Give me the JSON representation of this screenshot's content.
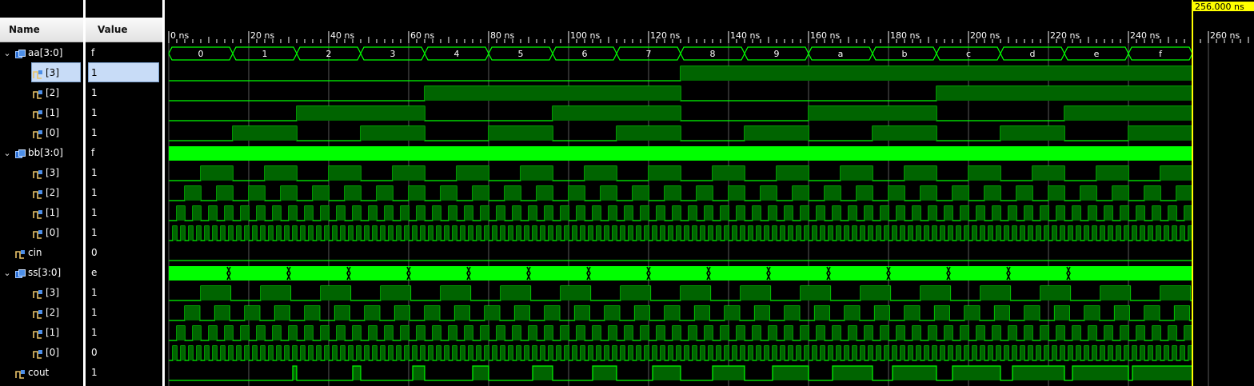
{
  "columns": {
    "name": "Name",
    "value": "Value"
  },
  "cursor": {
    "time_label": "256.000 ns",
    "time_ns": 256
  },
  "time_axis": {
    "range_ns": [
      0,
      268
    ],
    "major_ticks": [
      {
        "t": 0,
        "label": "0 ns"
      },
      {
        "t": 20,
        "label": "20 ns"
      },
      {
        "t": 40,
        "label": "40 ns"
      },
      {
        "t": 60,
        "label": "60 ns"
      },
      {
        "t": 80,
        "label": "80 ns"
      },
      {
        "t": 100,
        "label": "100 ns"
      },
      {
        "t": 120,
        "label": "120 ns"
      },
      {
        "t": 140,
        "label": "140 ns"
      },
      {
        "t": 160,
        "label": "160 ns"
      },
      {
        "t": 180,
        "label": "180 ns"
      },
      {
        "t": 200,
        "label": "200 ns"
      },
      {
        "t": 220,
        "label": "220 ns"
      },
      {
        "t": 240,
        "label": "240 ns"
      },
      {
        "t": 260,
        "label": "260 ns"
      }
    ]
  },
  "colors": {
    "wave": "#00ff00",
    "wave_dim": "#006400",
    "grid": "#5a5a5a",
    "cursor": "#ffff00",
    "selection": "#c8dcf7"
  },
  "signals": [
    {
      "name": "aa[3:0]",
      "value": "f",
      "kind": "bus",
      "expanded": true,
      "level": 0,
      "bus_labels": [
        "0",
        "1",
        "2",
        "3",
        "4",
        "5",
        "6",
        "7",
        "8",
        "9",
        "a",
        "b",
        "c",
        "d",
        "e",
        "f"
      ],
      "bus_period_ns": 16
    },
    {
      "name": "[3]",
      "value": "1",
      "kind": "bit",
      "level": 1,
      "selected": true,
      "period_ns": 256,
      "phase_ns": 128
    },
    {
      "name": "[2]",
      "value": "1",
      "kind": "bit",
      "level": 1,
      "period_ns": 128,
      "phase_ns": 64
    },
    {
      "name": "[1]",
      "value": "1",
      "kind": "bit",
      "level": 1,
      "period_ns": 64,
      "phase_ns": 32
    },
    {
      "name": "[0]",
      "value": "1",
      "kind": "bit",
      "level": 1,
      "period_ns": 32,
      "phase_ns": 16
    },
    {
      "name": "bb[3:0]",
      "value": "f",
      "kind": "busdense",
      "expanded": true,
      "level": 0
    },
    {
      "name": "[3]",
      "value": "1",
      "kind": "bit",
      "level": 1,
      "period_ns": 16,
      "phase_ns": 8
    },
    {
      "name": "[2]",
      "value": "1",
      "kind": "bit",
      "level": 1,
      "period_ns": 8,
      "phase_ns": 4
    },
    {
      "name": "[1]",
      "value": "1",
      "kind": "bit",
      "level": 1,
      "period_ns": 4,
      "phase_ns": 2
    },
    {
      "name": "[0]",
      "value": "1",
      "kind": "bit",
      "level": 1,
      "period_ns": 2,
      "phase_ns": 1
    },
    {
      "name": "cin",
      "value": "0",
      "kind": "bit0",
      "level": 0
    },
    {
      "name": "ss[3:0]",
      "value": "e",
      "kind": "busdense2",
      "expanded": true,
      "level": 0
    },
    {
      "name": "[3]",
      "value": "1",
      "kind": "bit",
      "level": 1,
      "period_ns": 15,
      "phase_ns": 8
    },
    {
      "name": "[2]",
      "value": "1",
      "kind": "bit",
      "level": 1,
      "period_ns": 7.5,
      "phase_ns": 4
    },
    {
      "name": "[1]",
      "value": "1",
      "kind": "bit",
      "level": 1,
      "period_ns": 4,
      "phase_ns": 2
    },
    {
      "name": "[0]",
      "value": "0",
      "kind": "bit",
      "level": 1,
      "period_ns": 2,
      "phase_ns": 1
    },
    {
      "name": "cout",
      "value": "1",
      "kind": "cout",
      "level": 0,
      "pulses": [
        [
          31,
          32
        ],
        [
          46,
          48
        ],
        [
          61,
          64
        ],
        [
          76,
          80
        ],
        [
          91,
          96
        ],
        [
          106,
          112
        ],
        [
          121,
          128
        ],
        [
          136,
          144
        ],
        [
          151,
          160
        ],
        [
          166,
          176
        ],
        [
          181,
          192
        ],
        [
          196,
          208
        ],
        [
          211,
          224
        ],
        [
          226,
          240
        ],
        [
          241,
          256
        ]
      ]
    }
  ]
}
